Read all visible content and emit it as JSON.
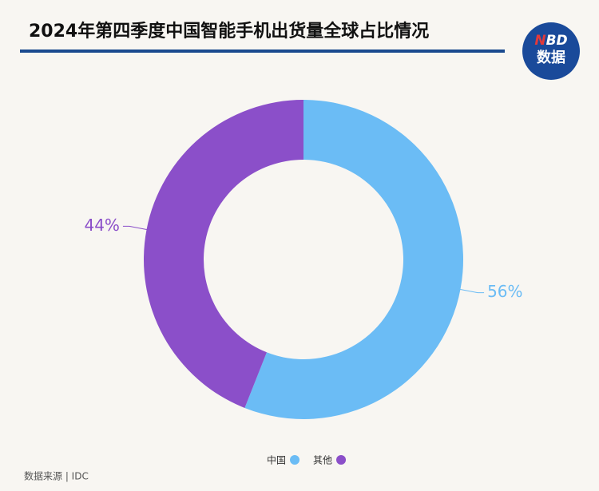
{
  "chart_data": {
    "type": "donut",
    "title": "2024年第四季度中国智能手机出货量全球占比情况",
    "categories": [
      "中国",
      "其他"
    ],
    "values": [
      56,
      44
    ],
    "value_labels": [
      "56%",
      "44%"
    ],
    "colors": [
      "#6bbcf5",
      "#8b4fc9"
    ],
    "source": "数据来源 | IDC",
    "logo": {
      "top": [
        "N",
        "BD"
      ],
      "bottom": "数据"
    }
  }
}
